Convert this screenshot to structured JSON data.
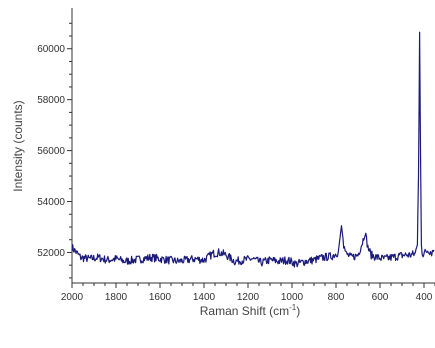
{
  "chart_data": {
    "type": "line",
    "title": "",
    "xlabel": "Raman Shift (cm",
    "xlabel_sup": "-1",
    "xlabel_suffix": ")",
    "ylabel": "Intensity (counts)",
    "xlim": [
      2000,
      350
    ],
    "x_reversed": true,
    "ylim": [
      50800,
      61600
    ],
    "x_ticks": [
      2000,
      1800,
      1600,
      1400,
      1200,
      1000,
      800,
      600,
      400
    ],
    "y_ticks": [
      52000,
      54000,
      56000,
      58000,
      60000
    ],
    "grid": false,
    "series": [
      {
        "color": "#1a1a7a",
        "x": [
          2000,
          1960,
          1920,
          1880,
          1840,
          1800,
          1760,
          1720,
          1680,
          1640,
          1600,
          1560,
          1520,
          1480,
          1440,
          1400,
          1360,
          1330,
          1300,
          1260,
          1220,
          1180,
          1140,
          1100,
          1060,
          1020,
          980,
          940,
          900,
          860,
          820,
          790,
          775,
          765,
          755,
          730,
          700,
          680,
          668,
          655,
          640,
          610,
          580,
          550,
          520,
          490,
          460,
          440,
          430,
          425,
          420,
          416,
          412,
          408,
          404,
          395,
          380,
          365,
          355
        ],
        "y": [
          52200,
          51800,
          51750,
          51800,
          51700,
          51750,
          51650,
          51700,
          51750,
          51800,
          51750,
          51700,
          51650,
          51700,
          51750,
          51700,
          51950,
          52000,
          51900,
          51650,
          51700,
          51750,
          51600,
          51700,
          51650,
          51700,
          51550,
          51650,
          51700,
          51800,
          51850,
          52000,
          53050,
          52300,
          51950,
          51800,
          51900,
          52400,
          52800,
          52200,
          51900,
          51800,
          51750,
          51800,
          51850,
          51900,
          51900,
          51950,
          52300,
          55000,
          60650,
          56000,
          52400,
          52000,
          51950,
          52000,
          52100,
          52000,
          52100
        ]
      }
    ]
  }
}
